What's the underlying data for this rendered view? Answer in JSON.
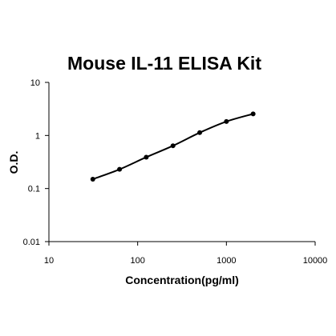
{
  "chart_data": {
    "type": "scatter",
    "title": "Mouse IL-11 ELISA Kit",
    "xlabel": "Concentration(pg/ml)",
    "ylabel": "O.D.",
    "x_scale": "log",
    "y_scale": "log",
    "xlim": [
      10,
      10000
    ],
    "ylim": [
      0.01,
      10
    ],
    "x_ticks": [
      10,
      100,
      1000,
      10000
    ],
    "x_tick_labels": [
      "10",
      "100",
      "1000",
      "10000"
    ],
    "y_ticks": [
      0.01,
      0.1,
      1,
      10
    ],
    "y_tick_labels": [
      "0.01",
      "0.1",
      "1",
      "10"
    ],
    "grid": false,
    "legend": "none",
    "series": [
      {
        "x": [
          31.25,
          62.5,
          125,
          250,
          500,
          1000,
          2000
        ],
        "y": [
          0.15,
          0.23,
          0.39,
          0.64,
          1.13,
          1.83,
          2.55
        ]
      }
    ],
    "colors": {
      "line": "#000000",
      "marker": "#000000",
      "axis": "#000000"
    }
  }
}
